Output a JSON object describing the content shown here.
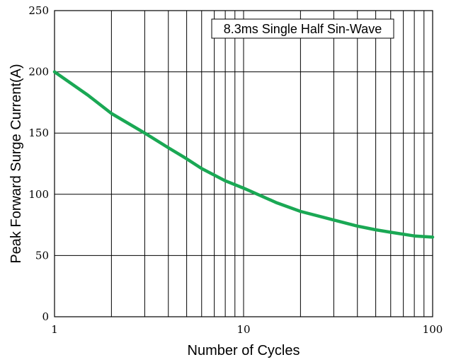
{
  "chart_data": {
    "type": "line",
    "title": "",
    "xlabel": "Number of Cycles",
    "ylabel": "Peak Forward Surge Current(A)",
    "x_scale": "log",
    "xlim": [
      1,
      100
    ],
    "ylim": [
      0,
      250
    ],
    "x_ticks": [
      1,
      10,
      100
    ],
    "y_ticks": [
      0,
      50,
      100,
      150,
      200,
      250
    ],
    "grid": true,
    "annotation": "8.3ms Single Half Sin-Wave",
    "series": [
      {
        "color": "#1aa854",
        "x": [
          1,
          1.5,
          2,
          3,
          4,
          5,
          6,
          8,
          10,
          15,
          20,
          30,
          40,
          50,
          60,
          80,
          100
        ],
        "y": [
          200,
          181,
          166,
          150,
          138,
          129,
          121,
          111,
          105,
          93,
          86,
          79,
          74,
          71,
          69,
          66,
          65
        ]
      }
    ]
  }
}
